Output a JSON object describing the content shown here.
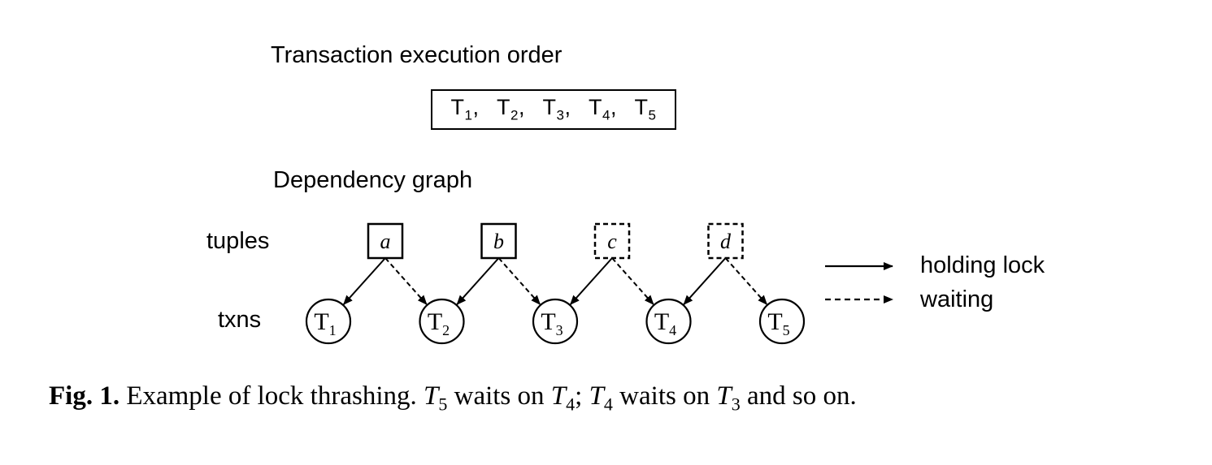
{
  "diagram": {
    "order_title": "Transaction execution order",
    "order_sequence": [
      {
        "letter": "T",
        "sub": "1"
      },
      {
        "letter": "T",
        "sub": "2"
      },
      {
        "letter": "T",
        "sub": "3"
      },
      {
        "letter": "T",
        "sub": "4"
      },
      {
        "letter": "T",
        "sub": "5"
      }
    ],
    "graph_title": "Dependency graph",
    "row_labels": {
      "tuples": "tuples",
      "txns": "txns"
    },
    "tuples": [
      {
        "id": "a",
        "style": "solid"
      },
      {
        "id": "b",
        "style": "solid"
      },
      {
        "id": "c",
        "style": "dashed"
      },
      {
        "id": "d",
        "style": "dashed"
      }
    ],
    "txns": [
      {
        "letter": "T",
        "sub": "1"
      },
      {
        "letter": "T",
        "sub": "2"
      },
      {
        "letter": "T",
        "sub": "3"
      },
      {
        "letter": "T",
        "sub": "4"
      },
      {
        "letter": "T",
        "sub": "5"
      }
    ],
    "edges": [
      {
        "from": "a",
        "to": "T1",
        "type": "holding"
      },
      {
        "from": "a",
        "to": "T2",
        "type": "waiting"
      },
      {
        "from": "b",
        "to": "T2",
        "type": "holding"
      },
      {
        "from": "b",
        "to": "T3",
        "type": "waiting"
      },
      {
        "from": "c",
        "to": "T3",
        "type": "holding"
      },
      {
        "from": "c",
        "to": "T4",
        "type": "waiting"
      },
      {
        "from": "d",
        "to": "T4",
        "type": "holding"
      },
      {
        "from": "d",
        "to": "T5",
        "type": "waiting"
      }
    ],
    "legend": {
      "holding": "holding lock",
      "waiting": "waiting"
    }
  },
  "caption": {
    "label": "Fig. 1.",
    "text_1": "Example of lock thrashing.",
    "t5": {
      "letter": "T",
      "sub": "5"
    },
    "text_2": "waits on",
    "t4a": {
      "letter": "T",
      "sub": "4"
    },
    "text_3": ";",
    "t4b": {
      "letter": "T",
      "sub": "4"
    },
    "text_4": "waits on",
    "t3": {
      "letter": "T",
      "sub": "3"
    },
    "text_5": "and so on."
  }
}
